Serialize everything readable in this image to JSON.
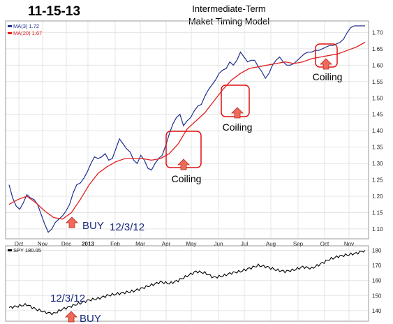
{
  "header": {
    "date": "11-15-13",
    "title_line1": "Intermediate-Term",
    "title_line2": "Maket Timing Model"
  },
  "chart_data": [
    {
      "type": "line",
      "panel": "main",
      "legend": [
        {
          "label": "MA(3) 1.72",
          "color": "#1f2f8f"
        },
        {
          "label": "MA(20) 1.67",
          "color": "#e02020"
        }
      ],
      "x_tick_labels": [
        "Oct",
        "Nov",
        "Dec",
        "2013",
        "Feb",
        "Mar",
        "Apr",
        "May",
        "Jun",
        "Jul",
        "Aug",
        "Sep",
        "Oct",
        "Nov"
      ],
      "y_ticks": [
        "1.70",
        "1.65",
        "1.60",
        "1.55",
        "1.50",
        "1.45",
        "1.40",
        "1.35",
        "1.30",
        "1.25",
        "1.20",
        "1.15",
        "1.10"
      ],
      "ylim": [
        1.07,
        1.735
      ],
      "grid": true,
      "series": [
        {
          "name": "MA(3)",
          "color": "#1f2f8f",
          "x": [
            0,
            2,
            4,
            6,
            8,
            10,
            12,
            14,
            16,
            18,
            20,
            22,
            24,
            26,
            28,
            30,
            32,
            34,
            36,
            38,
            40,
            42,
            44,
            46,
            48,
            50,
            52,
            54,
            56,
            58,
            60,
            62,
            64,
            66,
            68,
            70,
            72,
            74,
            76,
            78,
            80,
            82,
            84,
            86,
            88,
            90,
            92,
            94,
            96,
            98,
            100,
            102,
            104,
            106,
            108,
            110,
            112,
            114,
            116,
            118,
            120,
            122,
            124,
            126,
            128,
            130,
            132,
            134,
            136,
            138,
            140,
            142,
            144,
            146,
            148,
            150,
            152,
            154,
            156,
            158,
            160,
            162,
            164,
            166,
            168,
            170,
            172,
            174,
            176,
            178,
            180,
            182,
            184,
            186,
            188,
            190,
            192,
            194,
            196,
            198,
            200
          ],
          "values": [
            1.235,
            1.195,
            1.17,
            1.16,
            1.18,
            1.205,
            1.195,
            1.19,
            1.175,
            1.145,
            1.115,
            1.09,
            1.1,
            1.12,
            1.13,
            1.14,
            1.155,
            1.175,
            1.21,
            1.235,
            1.24,
            1.255,
            1.275,
            1.3,
            1.32,
            1.315,
            1.32,
            1.33,
            1.31,
            1.315,
            1.345,
            1.375,
            1.36,
            1.345,
            1.335,
            1.31,
            1.3,
            1.325,
            1.31,
            1.285,
            1.28,
            1.3,
            1.315,
            1.325,
            1.355,
            1.39,
            1.42,
            1.44,
            1.45,
            1.415,
            1.43,
            1.44,
            1.46,
            1.475,
            1.48,
            1.505,
            1.525,
            1.54,
            1.555,
            1.575,
            1.585,
            1.59,
            1.61,
            1.6,
            1.615,
            1.64,
            1.625,
            1.61,
            1.615,
            1.615,
            1.595,
            1.58,
            1.56,
            1.575,
            1.6,
            1.615,
            1.625,
            1.61,
            1.6,
            1.6,
            1.605,
            1.615,
            1.625,
            1.635,
            1.64,
            1.64,
            1.645,
            1.645,
            1.65,
            1.655,
            1.66,
            1.66,
            1.665,
            1.67,
            1.68,
            1.7,
            1.715,
            1.72,
            1.72,
            1.72,
            1.72
          ]
        },
        {
          "name": "MA(20)",
          "color": "#e02020",
          "x": [
            0,
            5,
            10,
            15,
            20,
            25,
            30,
            35,
            40,
            45,
            50,
            55,
            60,
            65,
            70,
            75,
            80,
            85,
            90,
            95,
            100,
            105,
            110,
            115,
            120,
            125,
            130,
            135,
            140,
            145,
            150,
            155,
            160,
            165,
            170,
            175,
            180,
            185,
            190,
            195,
            200
          ],
          "values": [
            1.175,
            1.19,
            1.2,
            1.18,
            1.155,
            1.135,
            1.13,
            1.15,
            1.19,
            1.235,
            1.27,
            1.29,
            1.305,
            1.315,
            1.315,
            1.315,
            1.31,
            1.315,
            1.33,
            1.36,
            1.405,
            1.43,
            1.455,
            1.49,
            1.525,
            1.555,
            1.575,
            1.59,
            1.595,
            1.6,
            1.605,
            1.61,
            1.605,
            1.61,
            1.62,
            1.625,
            1.63,
            1.635,
            1.645,
            1.655,
            1.67
          ]
        }
      ],
      "annotations": [
        {
          "text": "Coiling",
          "x": 64,
          "y": 1.24
        },
        {
          "text": "Coiling",
          "x": 130,
          "y": 1.385
        },
        {
          "text": "Coiling",
          "x": 185,
          "y": 1.545
        },
        {
          "text": "BUY",
          "x": 25,
          "y": 1.105
        },
        {
          "text": "12/3/12",
          "x": 40,
          "y": 1.1
        }
      ]
    },
    {
      "type": "line",
      "panel": "lower",
      "legend": [
        {
          "label": "SPY 180.05",
          "color": "#000000"
        }
      ],
      "y_ticks": [
        "180",
        "170",
        "160",
        "150",
        "140"
      ],
      "ylim": [
        133,
        183
      ],
      "grid": true,
      "series": [
        {
          "name": "SPY",
          "color": "#000000",
          "x": [
            0,
            5,
            10,
            15,
            20,
            25,
            30,
            35,
            40,
            45,
            50,
            55,
            60,
            65,
            70,
            75,
            80,
            85,
            90,
            95,
            100,
            105,
            110,
            115,
            120,
            125,
            130,
            135,
            140,
            145,
            150,
            155,
            160,
            165,
            170,
            175,
            180,
            185,
            190,
            195,
            200
          ],
          "values": [
            142,
            143,
            144,
            141,
            139,
            138,
            141,
            143,
            145,
            147,
            148,
            150,
            151,
            152,
            153,
            155,
            157,
            159,
            158,
            160,
            163,
            166,
            165,
            162,
            163,
            165,
            166,
            168,
            170,
            169,
            167,
            166,
            167,
            169,
            168,
            171,
            174,
            176,
            177,
            178,
            180
          ]
        }
      ],
      "annotations": [
        {
          "text": "12/3/12",
          "x": 24,
          "y": 148
        },
        {
          "text": "BUY",
          "x": 30,
          "y": 136
        }
      ]
    }
  ]
}
